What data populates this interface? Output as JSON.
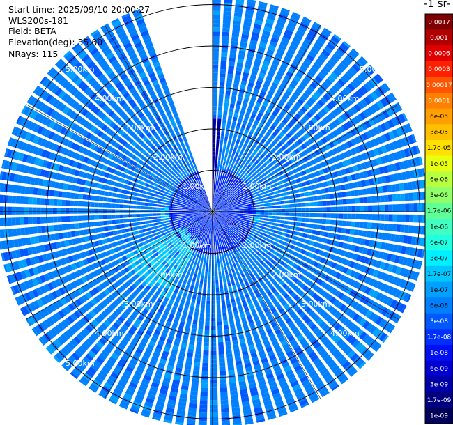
{
  "header": {
    "start_time": "Start time: 2025/09/10 20:00:27",
    "instrument": "WLS200s-181",
    "field": "Field: BETA",
    "elevation": "Elevation(deg): 35.00",
    "nrays": "NRays: 115"
  },
  "colorbar": {
    "title": "-1 sr-",
    "labels": [
      "0.0017",
      "0.001",
      "0.0006",
      "0.0003",
      "0.00017",
      "0.0001",
      "6e-05",
      "3e-05",
      "1.7e-05",
      "1e-05",
      "6e-06",
      "3e-06",
      "1.7e-06",
      "1e-06",
      "6e-07",
      "3e-07",
      "1.7e-07",
      "1e-07",
      "6e-08",
      "3e-08",
      "1.7e-08",
      "1e-08",
      "6e-09",
      "3e-09",
      "1.7e-09",
      "1e-09"
    ],
    "colors": [
      "#7f0000",
      "#b00000",
      "#e00000",
      "#ff2000",
      "#ff5500",
      "#ff8000",
      "#ffa000",
      "#ffc000",
      "#ffe000",
      "#e8ff10",
      "#b8ff40",
      "#90ff68",
      "#60ff98",
      "#40ffc0",
      "#20ffe0",
      "#00f0ff",
      "#00c8ff",
      "#00a0ff",
      "#0080ff",
      "#0058ff",
      "#0030ff",
      "#0010f0",
      "#0000d0",
      "#0000a8",
      "#000080",
      "#00005a"
    ]
  },
  "chart_data": {
    "type": "heatmap",
    "projection": "polar PPI",
    "field": "BETA",
    "units_fragment": "-1 sr-",
    "range_rings_km": [
      1,
      2,
      3,
      4,
      5
    ],
    "ring_labels": [
      "1.00km",
      "2.00km",
      "3.00km",
      "4.00km",
      "5.00km"
    ],
    "max_range_km": 5.2,
    "nrays": 115,
    "elevation_deg": 35.0,
    "gap_sector_deg": [
      -19,
      -1
    ],
    "dominant_value": "6e-08",
    "near_range_value": "1.7e-08",
    "north_strip_value": "3e-09",
    "patches": [
      {
        "azimuth_deg": [
          205,
          245
        ],
        "range_km": [
          0.7,
          2.3
        ],
        "value": "1.7e-07"
      },
      {
        "azimuth_deg": [
          262,
          276
        ],
        "range_km": [
          1.0,
          1.2
        ],
        "value": "1.7e-07"
      },
      {
        "azimuth_deg": [
          96,
          104
        ],
        "range_km": [
          0.9,
          1.1
        ],
        "value": "1.7e-07"
      }
    ]
  }
}
